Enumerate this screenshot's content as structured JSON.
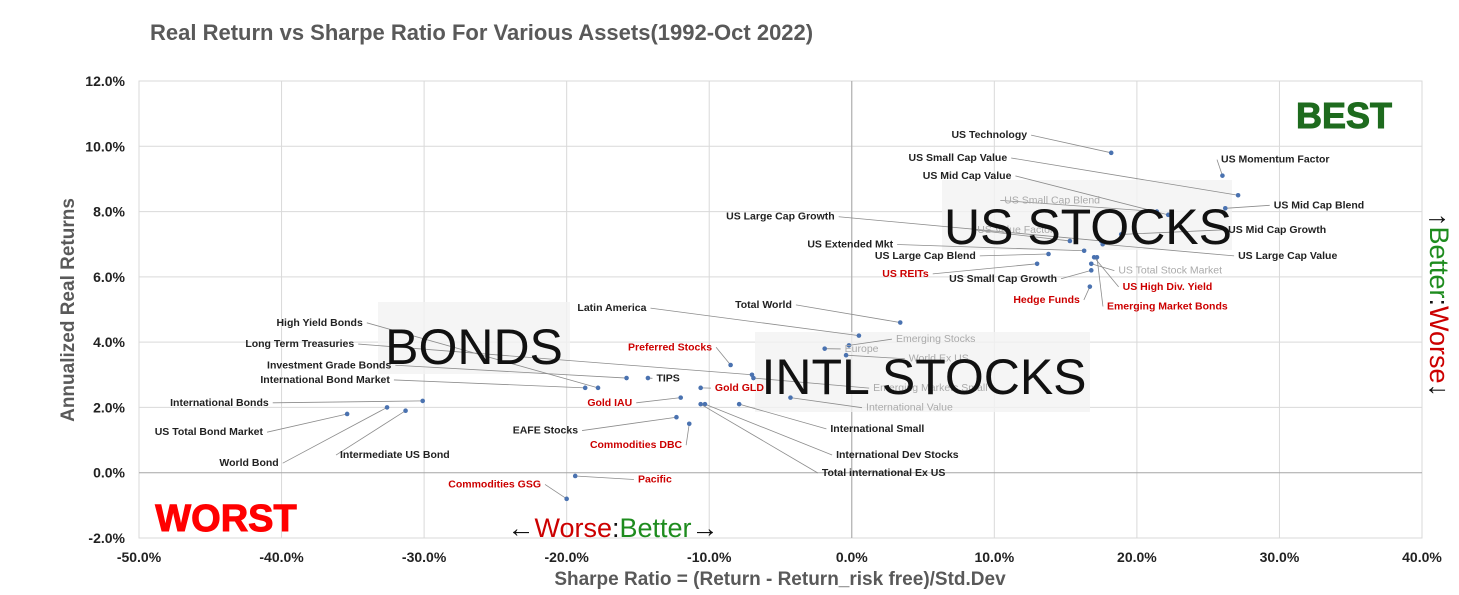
{
  "chart_data": {
    "type": "scatter",
    "title": "Real Return vs Sharpe Ratio For Various Assets(1992-Oct 2022)",
    "xlabel": "Sharpe Ratio = (Return - Return_risk free)/Std.Dev",
    "ylabel": "Annualized Real Returns",
    "xlim": [
      -0.5,
      0.4
    ],
    "ylim": [
      -0.02,
      0.12
    ],
    "x_ticks": [
      "-50.0%",
      "-40.0%",
      "-30.0%",
      "-20.0%",
      "-10.0%",
      "0.0%",
      "10.0%",
      "20.0%",
      "30.0%",
      "40.0%"
    ],
    "y_ticks": [
      "-2.0%",
      "0.0%",
      "2.0%",
      "4.0%",
      "6.0%",
      "8.0%",
      "10.0%",
      "12.0%"
    ],
    "grid": true,
    "colors": {
      "marker": "#4a72b0",
      "label_black": "#222222",
      "label_red": "#cc0000",
      "label_gray": "#aaaaaa",
      "best": "#1e6b1e",
      "worst": "#ff0000",
      "better": "#1e8c1e",
      "worse": "#cc0000"
    },
    "annotations": {
      "best": "BEST",
      "worst": "WORST",
      "us_stocks": "US STOCKS",
      "intl_stocks": "INTL STOCKS",
      "bonds": "BONDS",
      "x_arrow_left": "←",
      "x_worse": "Worse",
      "x_colon": ":",
      "x_better": "Better",
      "x_arrow_right": "→",
      "y_arrow_up": "↑",
      "y_better": "Better",
      "y_colon": ":",
      "y_worse": "Worse",
      "y_arrow_down": "↓"
    },
    "points": [
      {
        "name": "US Technology",
        "x": 0.182,
        "y": 0.098,
        "color": "black",
        "lx": 0.123,
        "ly": 0.1025,
        "anchor": "end"
      },
      {
        "name": "US Small Cap Value",
        "x": 0.271,
        "y": 0.085,
        "color": "black",
        "lx": 0.109,
        "ly": 0.0955,
        "anchor": "end"
      },
      {
        "name": "US Momentum Factor",
        "x": 0.26,
        "y": 0.091,
        "color": "black",
        "lx": 0.259,
        "ly": 0.095,
        "anchor": "start"
      },
      {
        "name": "US Mid Cap Value",
        "x": 0.222,
        "y": 0.079,
        "color": "black",
        "lx": 0.112,
        "ly": 0.09,
        "anchor": "end"
      },
      {
        "name": "US Mid Cap Blend",
        "x": 0.262,
        "y": 0.081,
        "color": "black",
        "lx": 0.296,
        "ly": 0.081,
        "anchor": "start"
      },
      {
        "name": "US Small Cap Blend",
        "x": 0.214,
        "y": 0.08,
        "color": "gray",
        "lx": 0.107,
        "ly": 0.0825,
        "anchor": "start"
      },
      {
        "name": "US Large Cap Growth",
        "x": 0.175,
        "y": 0.071,
        "color": "black",
        "lx": -0.012,
        "ly": 0.0775,
        "anchor": "end"
      },
      {
        "name": "US Mid Cap Growth",
        "x": 0.189,
        "y": 0.073,
        "color": "black",
        "lx": 0.264,
        "ly": 0.0735,
        "anchor": "start"
      },
      {
        "name": "US Value Factor",
        "x": 0.153,
        "y": 0.071,
        "color": "gray",
        "lx": 0.088,
        "ly": 0.0735,
        "anchor": "start"
      },
      {
        "name": "US Extended Mkt",
        "x": 0.163,
        "y": 0.068,
        "color": "black",
        "lx": 0.029,
        "ly": 0.069,
        "anchor": "end"
      },
      {
        "name": "US Large Cap Value",
        "x": 0.176,
        "y": 0.07,
        "color": "black",
        "lx": 0.271,
        "ly": 0.0655,
        "anchor": "start"
      },
      {
        "name": "US Large Cap Blend",
        "x": 0.138,
        "y": 0.067,
        "color": "black",
        "lx": 0.087,
        "ly": 0.0655,
        "anchor": "end"
      },
      {
        "name": "US Total Stock Market",
        "x": 0.168,
        "y": 0.064,
        "color": "gray",
        "lx": 0.187,
        "ly": 0.061,
        "anchor": "start"
      },
      {
        "name": "US REITs",
        "x": 0.13,
        "y": 0.064,
        "color": "red",
        "lx": 0.054,
        "ly": 0.06,
        "anchor": "end"
      },
      {
        "name": "US Small Cap Growth",
        "x": 0.168,
        "y": 0.062,
        "color": "black",
        "lx": 0.144,
        "ly": 0.0585,
        "anchor": "end"
      },
      {
        "name": "US High Div. Yield",
        "x": 0.17,
        "y": 0.066,
        "color": "red",
        "lx": 0.19,
        "ly": 0.056,
        "anchor": "start"
      },
      {
        "name": "Hedge Funds",
        "x": 0.167,
        "y": 0.057,
        "color": "red",
        "lx": 0.16,
        "ly": 0.052,
        "anchor": "end"
      },
      {
        "name": "Emerging Market Bonds",
        "x": 0.172,
        "y": 0.066,
        "color": "red",
        "lx": 0.179,
        "ly": 0.05,
        "anchor": "start"
      },
      {
        "name": "Total World",
        "x": 0.034,
        "y": 0.046,
        "color": "black",
        "lx": -0.042,
        "ly": 0.0505,
        "anchor": "end"
      },
      {
        "name": "Latin America",
        "x": 0.005,
        "y": 0.042,
        "color": "black",
        "lx": -0.144,
        "ly": 0.0495,
        "anchor": "end"
      },
      {
        "name": "Emerging Stocks",
        "x": -0.002,
        "y": 0.039,
        "color": "gray",
        "lx": 0.031,
        "ly": 0.04,
        "anchor": "start"
      },
      {
        "name": "Europe",
        "x": -0.019,
        "y": 0.038,
        "color": "gray",
        "lx": -0.005,
        "ly": 0.037,
        "anchor": "start"
      },
      {
        "name": "Preferred Stocks",
        "x": -0.085,
        "y": 0.033,
        "color": "red",
        "lx": -0.098,
        "ly": 0.0375,
        "anchor": "end"
      },
      {
        "name": "World Ex US",
        "x": -0.004,
        "y": 0.036,
        "color": "gray",
        "lx": 0.04,
        "ly": 0.034,
        "anchor": "start"
      },
      {
        "name": "TIPS",
        "x": -0.143,
        "y": 0.029,
        "color": "black",
        "lx": -0.137,
        "ly": 0.028,
        "anchor": "start"
      },
      {
        "name": "Emerging Markets Small",
        "x": -0.069,
        "y": 0.029,
        "color": "gray",
        "lx": 0.015,
        "ly": 0.025,
        "anchor": "start"
      },
      {
        "name": "Gold GLD",
        "x": -0.106,
        "y": 0.026,
        "color": "red",
        "lx": -0.096,
        "ly": 0.025,
        "anchor": "start"
      },
      {
        "name": "Gold IAU",
        "x": -0.12,
        "y": 0.023,
        "color": "red",
        "lx": -0.154,
        "ly": 0.0205,
        "anchor": "end"
      },
      {
        "name": "International Value",
        "x": -0.043,
        "y": 0.023,
        "color": "gray",
        "lx": 0.01,
        "ly": 0.019,
        "anchor": "start"
      },
      {
        "name": "International Small",
        "x": -0.079,
        "y": 0.021,
        "color": "black",
        "lx": -0.015,
        "ly": 0.0125,
        "anchor": "start"
      },
      {
        "name": "EAFE Stocks",
        "x": -0.123,
        "y": 0.017,
        "color": "black",
        "lx": -0.192,
        "ly": 0.012,
        "anchor": "end"
      },
      {
        "name": "Commodities DBC",
        "x": -0.114,
        "y": 0.015,
        "color": "red",
        "lx": -0.119,
        "ly": 0.0075,
        "anchor": "end"
      },
      {
        "name": "International Dev Stocks",
        "x": -0.103,
        "y": 0.021,
        "color": "black",
        "lx": -0.011,
        "ly": 0.0045,
        "anchor": "start"
      },
      {
        "name": "Pacific",
        "x": -0.194,
        "y": -0.001,
        "color": "red",
        "lx": -0.15,
        "ly": -0.003,
        "anchor": "start"
      },
      {
        "name": "Total international Ex US",
        "x": -0.106,
        "y": 0.021,
        "color": "black",
        "lx": -0.021,
        "ly": -0.001,
        "anchor": "start"
      },
      {
        "name": "Commodities GSG",
        "x": -0.2,
        "y": -0.008,
        "color": "red",
        "lx": -0.218,
        "ly": -0.0045,
        "anchor": "end"
      },
      {
        "name": "High Yield Bonds",
        "x": -0.178,
        "y": 0.026,
        "color": "black",
        "lx": -0.343,
        "ly": 0.045,
        "anchor": "end"
      },
      {
        "name": "Long Term Treasuries",
        "x": -0.07,
        "y": 0.03,
        "color": "black",
        "lx": -0.349,
        "ly": 0.0385,
        "anchor": "end"
      },
      {
        "name": "Investment Grade Bonds",
        "x": -0.158,
        "y": 0.029,
        "color": "black",
        "lx": -0.323,
        "ly": 0.032,
        "anchor": "end"
      },
      {
        "name": "International Bond Market",
        "x": -0.187,
        "y": 0.026,
        "color": "black",
        "lx": -0.324,
        "ly": 0.0275,
        "anchor": "end"
      },
      {
        "name": "International  Bonds",
        "x": -0.301,
        "y": 0.022,
        "color": "black",
        "lx": -0.409,
        "ly": 0.0205,
        "anchor": "end"
      },
      {
        "name": "US Total Bond Market",
        "x": -0.354,
        "y": 0.018,
        "color": "black",
        "lx": -0.413,
        "ly": 0.0115,
        "anchor": "end"
      },
      {
        "name": "Intermediate US Bond",
        "x": -0.313,
        "y": 0.019,
        "color": "black",
        "lx": -0.359,
        "ly": 0.0045,
        "anchor": "start"
      },
      {
        "name": "World Bond",
        "x": -0.326,
        "y": 0.02,
        "color": "black",
        "lx": -0.402,
        "ly": 0.002,
        "anchor": "end"
      }
    ]
  }
}
